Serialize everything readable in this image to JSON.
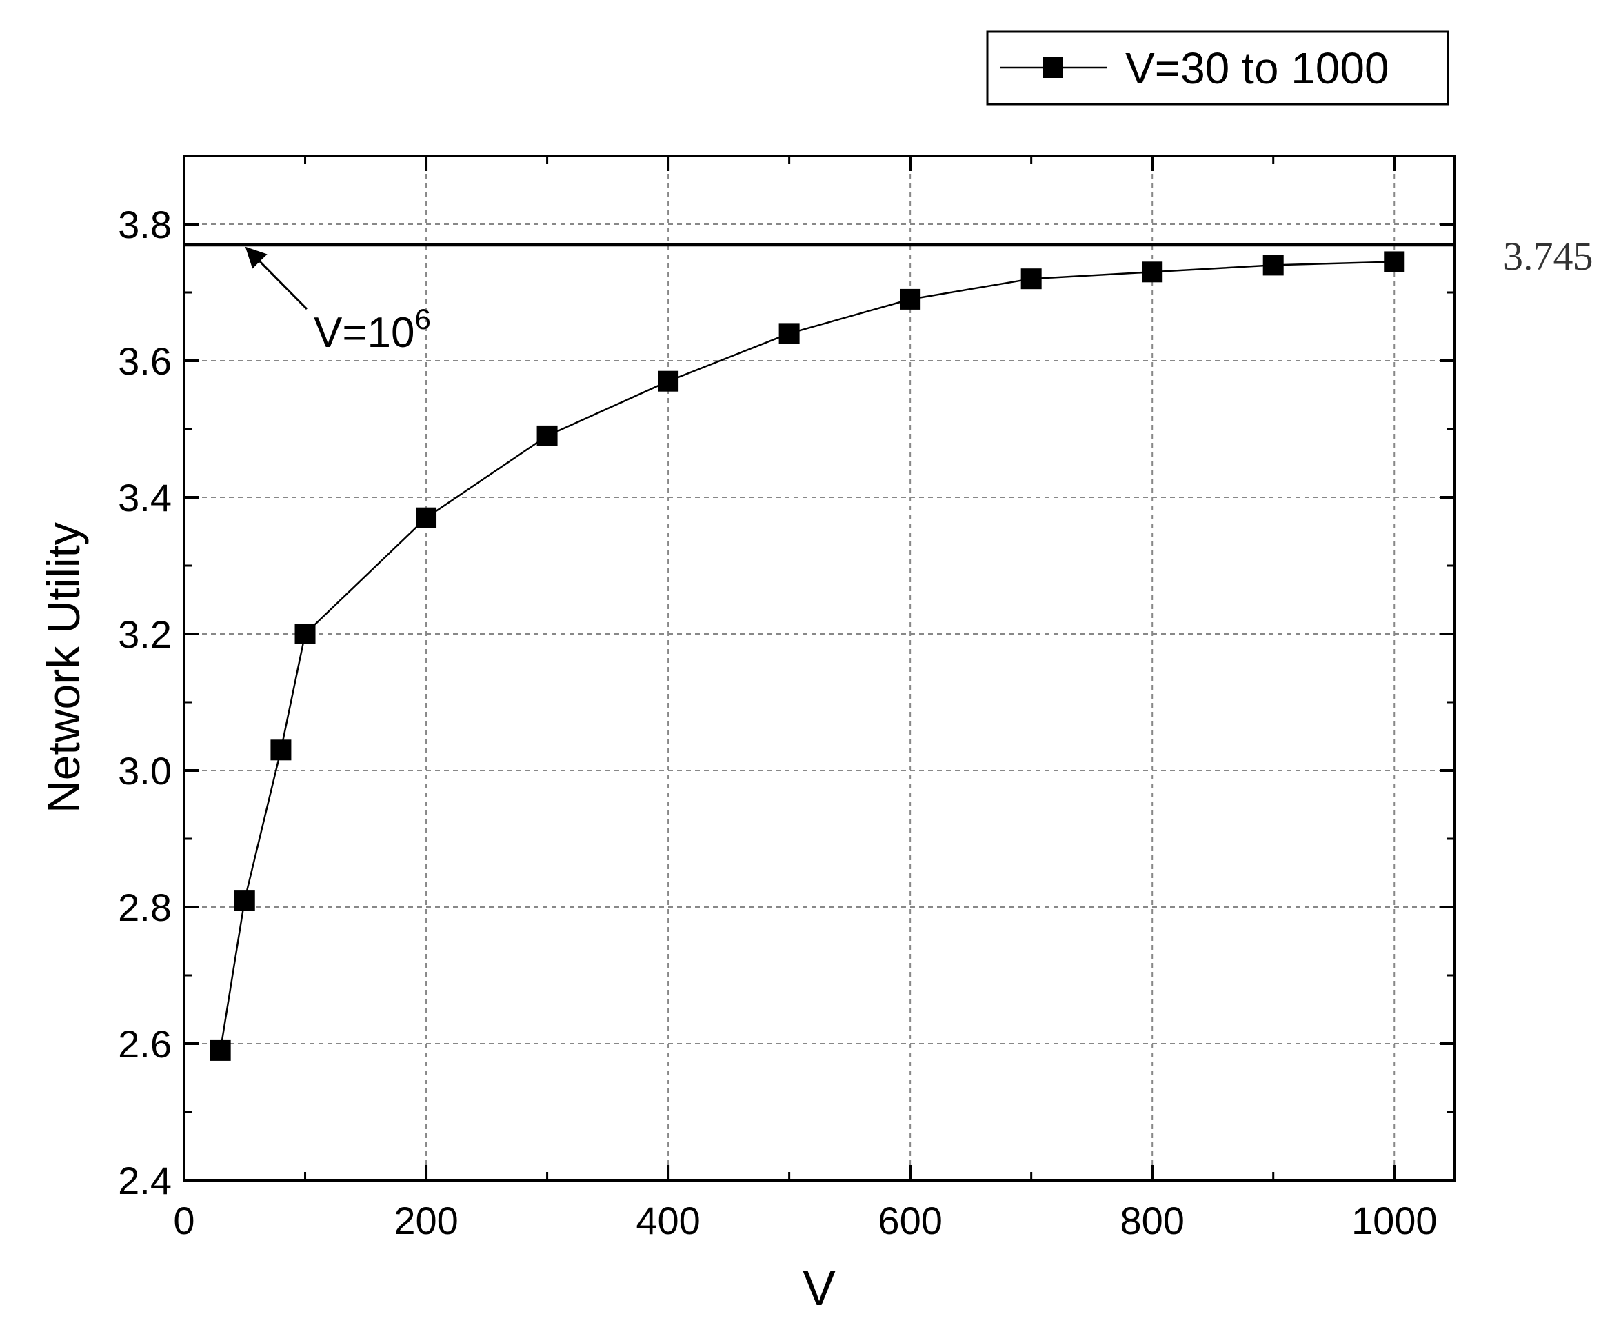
{
  "chart_data": {
    "type": "line",
    "xlabel": "V",
    "ylabel": "Network Utility",
    "xlim": [
      0,
      1050
    ],
    "ylim": [
      2.4,
      3.9
    ],
    "xticks": [
      0,
      200,
      400,
      600,
      800,
      1000
    ],
    "xtick_labels": [
      "0",
      "200",
      "400",
      "600",
      "800",
      "1000"
    ],
    "yticks": [
      2.4,
      2.6,
      2.8,
      3.0,
      3.2,
      3.4,
      3.6,
      3.8
    ],
    "ytick_labels": [
      "2.4",
      "2.6",
      "2.8",
      "3.0",
      "3.2",
      "3.4",
      "3.6",
      "3.8"
    ],
    "grid": true,
    "legend_position": "top-right, above plot",
    "series": [
      {
        "name": "V=30 to 1000",
        "marker": "square",
        "color": "#000000",
        "x": [
          30,
          50,
          80,
          100,
          200,
          300,
          400,
          500,
          600,
          700,
          800,
          900,
          1000
        ],
        "y": [
          2.59,
          2.81,
          3.03,
          3.2,
          3.37,
          3.49,
          3.57,
          3.64,
          3.69,
          3.72,
          3.73,
          3.74,
          3.745
        ]
      }
    ],
    "reference_line": {
      "y": 3.77,
      "color": "#000000"
    },
    "annotations": {
      "arrow_label_base": "V=10",
      "arrow_label_exponent": "6",
      "right_value_label": "3.745"
    }
  }
}
